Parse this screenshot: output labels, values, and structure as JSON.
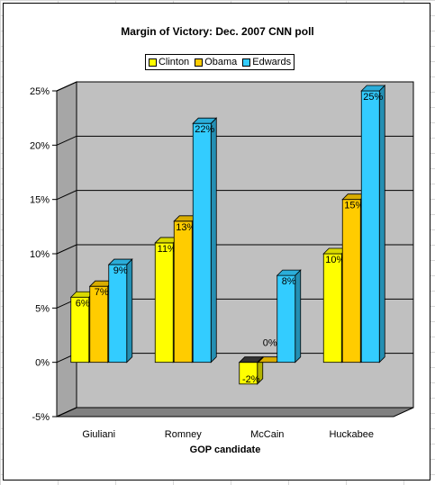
{
  "chart_data": {
    "type": "bar",
    "title": "Margin of Victory: Dec. 2007 CNN poll",
    "xlabel": "GOP candidate",
    "ylabel": "",
    "categories": [
      "Giuliani",
      "Romney",
      "McCain",
      "Huckabee"
    ],
    "series": [
      {
        "name": "Clinton",
        "color": "#ffff00",
        "values": [
          6,
          11,
          -2,
          10
        ]
      },
      {
        "name": "Obama",
        "color": "#ffcc00",
        "values": [
          7,
          13,
          0,
          15
        ]
      },
      {
        "name": "Edwards",
        "color": "#33ccff",
        "values": [
          9,
          22,
          8,
          25
        ]
      }
    ],
    "data_labels": [
      [
        "6%",
        "11%",
        "-2%",
        "10%"
      ],
      [
        "7%",
        "13%",
        "0%",
        "15%"
      ],
      [
        "9%",
        "22%",
        "8%",
        "25%"
      ]
    ],
    "ylim": [
      -5,
      25
    ],
    "y_ticks": [
      -5,
      0,
      5,
      10,
      15,
      20,
      25
    ],
    "y_tick_labels": [
      "-5%",
      "0%",
      "5%",
      "10%",
      "15%",
      "20%",
      "25%"
    ],
    "chart_style": "3d-clustered-column",
    "grid": true,
    "legend_position": "top",
    "wall_color": "#c0c0c0"
  }
}
